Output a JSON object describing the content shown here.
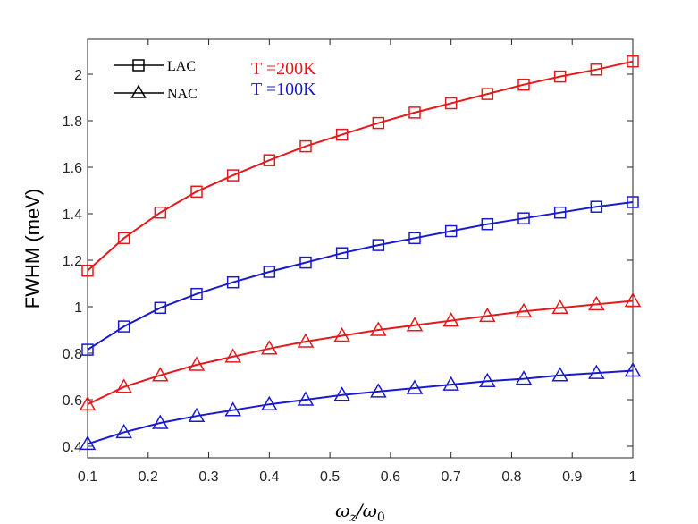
{
  "chart_data": {
    "type": "line",
    "title": "",
    "xlabel": "ωz/ω0",
    "xlabel_main": "ω",
    "xlabel_sub1": "z",
    "xlabel_slash": "/ω",
    "xlabel_sub2": "0",
    "ylabel": "FWHM (meV)",
    "xlim": [
      0.1,
      1.0
    ],
    "ylim": [
      0.35,
      2.15
    ],
    "xticks": [
      0.1,
      0.2,
      0.3,
      0.4,
      0.5,
      0.6,
      0.7,
      0.8,
      0.9,
      1.0
    ],
    "xtick_labels": [
      "0.1",
      "0.2",
      "0.3",
      "0.4",
      "0.5",
      "0.6",
      "0.7",
      "0.8",
      "0.9",
      "1"
    ],
    "yticks": [
      0.4,
      0.6,
      0.8,
      1.0,
      1.2,
      1.4,
      1.6,
      1.8,
      2.0
    ],
    "ytick_labels": [
      "0.4",
      "0.6",
      "0.8",
      "1",
      "1.2",
      "1.4",
      "1.6",
      "1.8",
      "2"
    ],
    "x": [
      0.1,
      0.16,
      0.22,
      0.28,
      0.34,
      0.4,
      0.46,
      0.52,
      0.58,
      0.64,
      0.7,
      0.76,
      0.82,
      0.88,
      0.94,
      1.0
    ],
    "series": [
      {
        "name": "LAC T=200K",
        "color": "#e31a1c",
        "marker": "square",
        "values": [
          1.155,
          1.295,
          1.405,
          1.495,
          1.565,
          1.63,
          1.69,
          1.74,
          1.79,
          1.835,
          1.875,
          1.915,
          1.955,
          1.99,
          2.02,
          2.055
        ]
      },
      {
        "name": "LAC T=100K",
        "color": "#1a1acd",
        "marker": "square",
        "values": [
          0.815,
          0.915,
          0.995,
          1.055,
          1.105,
          1.15,
          1.19,
          1.23,
          1.265,
          1.295,
          1.325,
          1.355,
          1.38,
          1.405,
          1.43,
          1.45
        ]
      },
      {
        "name": "NAC T=200K",
        "color": "#e31a1c",
        "marker": "triangle",
        "values": [
          0.58,
          0.655,
          0.705,
          0.75,
          0.785,
          0.82,
          0.85,
          0.875,
          0.9,
          0.92,
          0.94,
          0.96,
          0.98,
          0.995,
          1.01,
          1.025
        ]
      },
      {
        "name": "NAC T=100K",
        "color": "#1a1acd",
        "marker": "triangle",
        "values": [
          0.41,
          0.46,
          0.5,
          0.53,
          0.555,
          0.58,
          0.6,
          0.62,
          0.635,
          0.65,
          0.665,
          0.68,
          0.69,
          0.705,
          0.715,
          0.725
        ]
      }
    ],
    "legend": {
      "position": "top-left",
      "entries": [
        {
          "label": "LAC",
          "marker": "square"
        },
        {
          "label": "NAC",
          "marker": "triangle"
        }
      ]
    },
    "annotations": [
      {
        "text": "T =200K",
        "color": "#e31a1c"
      },
      {
        "text": "T =100K",
        "color": "#1a1acd"
      }
    ]
  }
}
